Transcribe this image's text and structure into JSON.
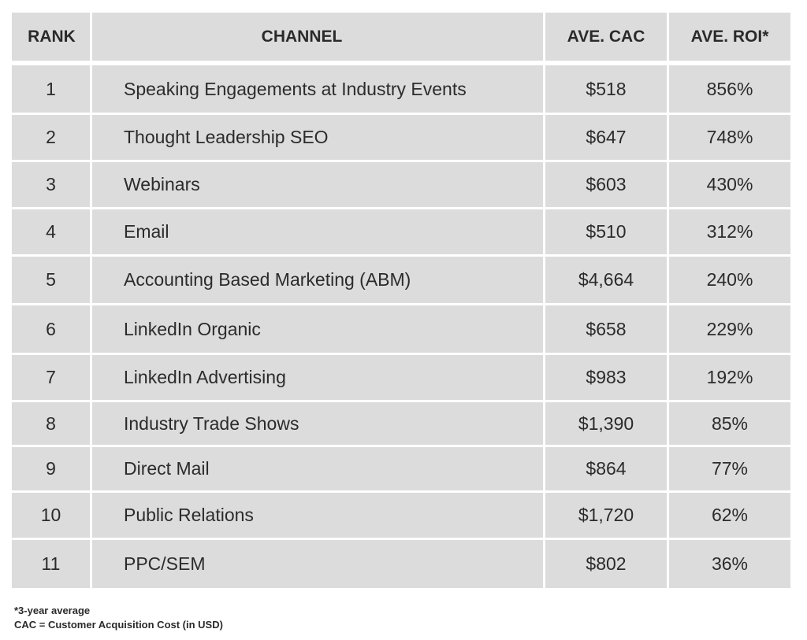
{
  "table": {
    "headers": {
      "rank": "RANK",
      "channel": "CHANNEL",
      "cac": "AVE. CAC",
      "roi": "AVE. ROI*"
    },
    "rows": [
      {
        "rank": "1",
        "channel": "Speaking Engagements at Industry Events",
        "cac": "$518",
        "roi": "856%"
      },
      {
        "rank": "2",
        "channel": "Thought Leadership SEO",
        "cac": "$647",
        "roi": "748%"
      },
      {
        "rank": "3",
        "channel": "Webinars",
        "cac": "$603",
        "roi": "430%"
      },
      {
        "rank": "4",
        "channel": "Email",
        "cac": "$510",
        "roi": "312%"
      },
      {
        "rank": "5",
        "channel": "Accounting Based Marketing (ABM)",
        "cac": "$4,664",
        "roi": "240%"
      },
      {
        "rank": "6",
        "channel": "LinkedIn Organic",
        "cac": "$658",
        "roi": "229%"
      },
      {
        "rank": "7",
        "channel": "LinkedIn Advertising",
        "cac": "$983",
        "roi": "192%"
      },
      {
        "rank": "8",
        "channel": "Industry Trade Shows",
        "cac": "$1,390",
        "roi": "85%"
      },
      {
        "rank": "9",
        "channel": "Direct Mail",
        "cac": "$864",
        "roi": "77%"
      },
      {
        "rank": "10",
        "channel": "Public Relations",
        "cac": "$1,720",
        "roi": "62%"
      },
      {
        "rank": "11",
        "channel": "PPC/SEM",
        "cac": "$802",
        "roi": "36%"
      }
    ]
  },
  "footnotes": {
    "roi_note": "*3-year average",
    "cac_note": "CAC = Customer Acquisition Cost (in USD)"
  },
  "colors": {
    "cell_background": "#dcdcdc",
    "grid_lines": "#ffffff",
    "text": "#2b2b2b"
  }
}
